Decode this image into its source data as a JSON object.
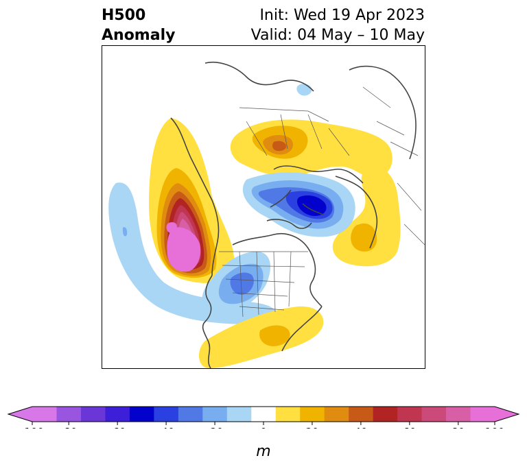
{
  "title": {
    "left_line1": "H500",
    "left_line2": "Anomaly",
    "init": "Init: Wed 19 Apr 2023",
    "valid": "Valid: 04 May – 10 May"
  },
  "colorbar": {
    "unit": "m",
    "ticks": [
      "-100",
      "-80",
      "-60",
      "-40",
      "-20",
      "0",
      "20",
      "40",
      "60",
      "80",
      "100"
    ],
    "colors": [
      "#d877e8",
      "#9a55e0",
      "#6a36d8",
      "#3d1fd9",
      "#0202cc",
      "#2a40e0",
      "#5079e5",
      "#78aef0",
      "#a9d6f5",
      "#ffffff",
      "#ffe040",
      "#f0b400",
      "#e08c10",
      "#c85a18",
      "#b22323",
      "#c0354f",
      "#cc4a7a",
      "#d85fa6",
      "#e670d8"
    ],
    "under_color": "#d877e8",
    "over_color": "#e670d8"
  },
  "map": {
    "projection": "north-polar-stereographic",
    "anomaly_centers": [
      {
        "name": "NE Pacific ridge",
        "sign": "positive",
        "peak_m": 100
      },
      {
        "name": "Siberia ridge",
        "sign": "positive",
        "peak_m": 40
      },
      {
        "name": "Atlantic/Europe ridge",
        "sign": "positive",
        "peak_m": 20
      },
      {
        "name": "SE US ridge",
        "sign": "positive",
        "peak_m": 20
      },
      {
        "name": "Arctic/Kara Sea trough",
        "sign": "negative",
        "peak_m": -60
      },
      {
        "name": "Central North America trough",
        "sign": "negative",
        "peak_m": -40
      },
      {
        "name": "Subtropical Pacific trough",
        "sign": "negative",
        "peak_m": -20
      }
    ]
  }
}
